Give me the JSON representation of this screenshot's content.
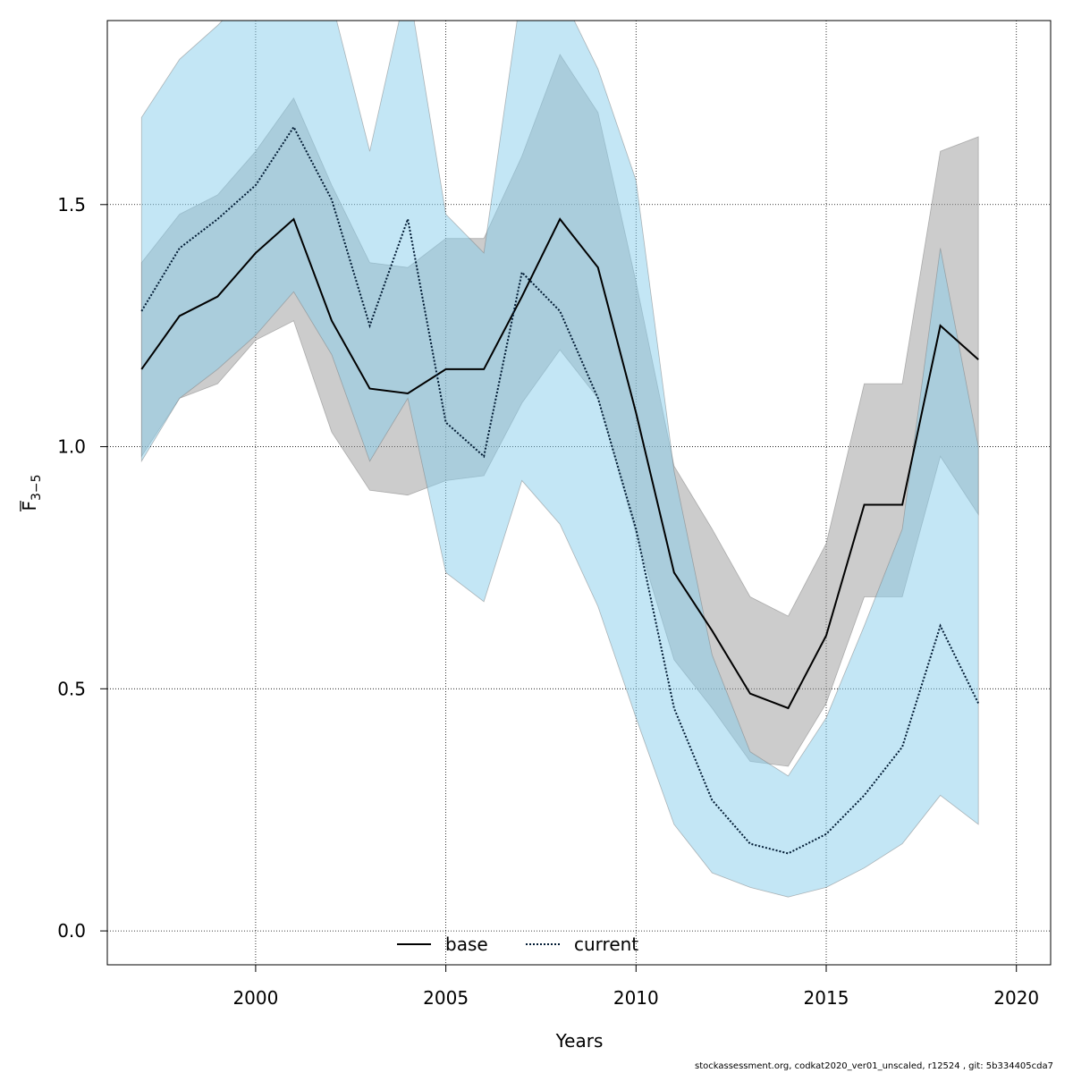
{
  "chart_data": {
    "type": "line",
    "xlabel": "Years",
    "ylabel_main": "F",
    "ylabel_sub": "3−5",
    "xlim": [
      1996.1,
      2020.9
    ],
    "ylim": [
      -0.07,
      1.88
    ],
    "x_ticks": [
      2000,
      2005,
      2010,
      2015,
      2020
    ],
    "y_ticks": [
      0.0,
      0.5,
      1.0,
      1.5
    ],
    "y_tick_labels": [
      "0.0",
      "0.5",
      "1.0",
      "1.5"
    ],
    "grid": true,
    "legend_position": "bottom-center",
    "x": [
      1997,
      1998,
      1999,
      2000,
      2001,
      2002,
      2003,
      2004,
      2005,
      2006,
      2007,
      2008,
      2009,
      2010,
      2011,
      2012,
      2013,
      2014,
      2015,
      2016,
      2017,
      2018,
      2019
    ],
    "series": [
      {
        "name": "base",
        "line_style": "solid",
        "line_color": "#000000",
        "band_color": "#999999",
        "values": [
          1.16,
          1.27,
          1.31,
          1.4,
          1.47,
          1.26,
          1.12,
          1.11,
          1.16,
          1.16,
          1.31,
          1.47,
          1.37,
          1.07,
          0.74,
          0.62,
          0.49,
          0.46,
          0.61,
          0.88,
          0.88,
          1.25,
          1.18
        ],
        "lower": [
          0.98,
          1.1,
          1.13,
          1.22,
          1.26,
          1.03,
          0.91,
          0.9,
          0.93,
          0.94,
          1.09,
          1.2,
          1.1,
          0.82,
          0.56,
          0.46,
          0.35,
          0.34,
          0.47,
          0.69,
          0.69,
          0.98,
          0.86
        ],
        "upper": [
          1.38,
          1.48,
          1.52,
          1.61,
          1.72,
          1.54,
          1.38,
          1.37,
          1.43,
          1.43,
          1.6,
          1.81,
          1.69,
          1.34,
          0.96,
          0.83,
          0.69,
          0.65,
          0.8,
          1.13,
          1.13,
          1.61,
          1.64
        ]
      },
      {
        "name": "current",
        "line_style": "dotted",
        "line_color": "#001a33",
        "band_color": "#87CEEB",
        "values": [
          1.28,
          1.41,
          1.47,
          1.54,
          1.66,
          1.51,
          1.25,
          1.47,
          1.05,
          0.98,
          1.36,
          1.28,
          1.1,
          0.83,
          0.46,
          0.27,
          0.18,
          0.16,
          0.2,
          0.28,
          0.38,
          0.63,
          0.47
        ],
        "lower": [
          0.97,
          1.1,
          1.16,
          1.23,
          1.32,
          1.19,
          0.97,
          1.1,
          0.74,
          0.68,
          0.93,
          0.84,
          0.67,
          0.44,
          0.22,
          0.12,
          0.09,
          0.07,
          0.09,
          0.13,
          0.18,
          0.28,
          0.22
        ],
        "upper": [
          1.68,
          1.8,
          1.87,
          1.95,
          2.08,
          1.92,
          1.61,
          1.96,
          1.48,
          1.4,
          1.95,
          1.94,
          1.78,
          1.55,
          0.95,
          0.57,
          0.37,
          0.32,
          0.44,
          0.63,
          0.83,
          1.41,
          1.0
        ]
      }
    ]
  },
  "footer": "stockassessment.org, codkat2020_ver01_unscaled, r12524 , git: 5b334405cda7"
}
